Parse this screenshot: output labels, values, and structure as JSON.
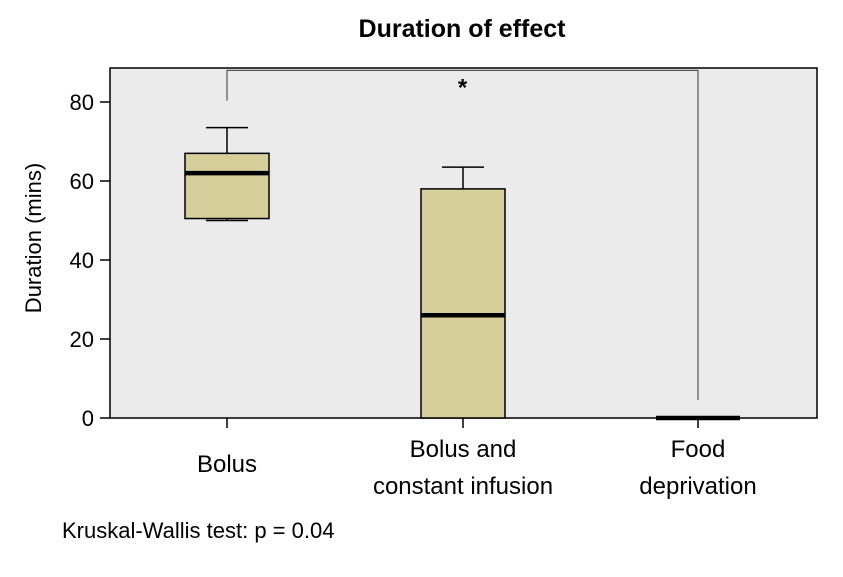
{
  "chart_data": {
    "type": "boxplot",
    "title": "Duration of effect",
    "xlabel": "",
    "ylabel": "Duration (mins)",
    "ylim": [
      0,
      90
    ],
    "yticks": [
      0,
      20,
      40,
      60,
      80
    ],
    "grid": false,
    "categories": [
      {
        "label_lines": [
          "Bolus"
        ]
      },
      {
        "label_lines": [
          "Bolus and",
          "constant infusion"
        ]
      },
      {
        "label_lines": [
          "Food",
          "deprivation"
        ]
      }
    ],
    "boxes": [
      {
        "min": 50,
        "q1": 50.5,
        "median": 62,
        "q3": 67,
        "max": 73.5
      },
      {
        "min": 0,
        "q1": 0,
        "median": 26,
        "q3": 58,
        "max": 63.5
      },
      {
        "min": 0,
        "q1": 0,
        "median": 0,
        "q3": 0,
        "max": 0
      }
    ],
    "significance": {
      "from": 0,
      "to": 2,
      "level": 88,
      "label": "*"
    },
    "colors": {
      "box_fill": "#d6cf9b",
      "plot_bg": "#ebebeb",
      "line": "#000000",
      "bracket": "#555555"
    }
  },
  "footnote": "Kruskal-Wallis test: p = 0.04"
}
